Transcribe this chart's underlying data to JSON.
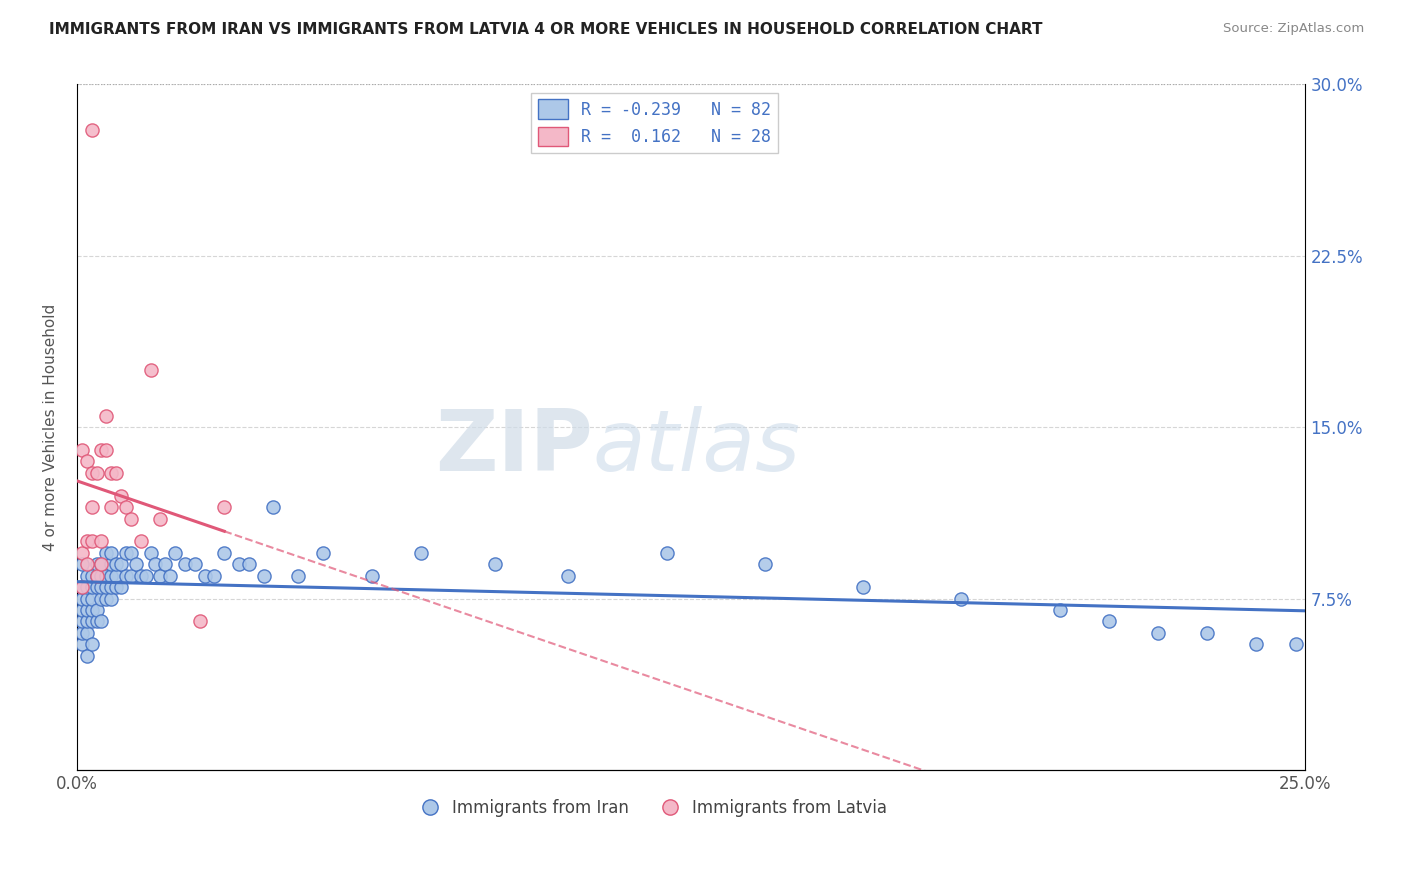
{
  "title": "IMMIGRANTS FROM IRAN VS IMMIGRANTS FROM LATVIA 4 OR MORE VEHICLES IN HOUSEHOLD CORRELATION CHART",
  "source": "Source: ZipAtlas.com",
  "ylabel": "4 or more Vehicles in Household",
  "xlim": [
    0.0,
    0.25
  ],
  "ylim": [
    0.0,
    0.3
  ],
  "yticks": [
    0.0,
    0.075,
    0.15,
    0.225,
    0.3
  ],
  "yticklabels": [
    "",
    "7.5%",
    "15.0%",
    "22.5%",
    "30.0%"
  ],
  "iran_color": "#adc8e8",
  "iran_color_line": "#4472c4",
  "latvia_color": "#f4b8c8",
  "latvia_color_line": "#e05878",
  "iran_R": -0.239,
  "iran_N": 82,
  "latvia_R": 0.162,
  "latvia_N": 28,
  "watermark_zip": "ZIP",
  "watermark_atlas": "atlas",
  "legend_iran_label": "Immigrants from Iran",
  "legend_latvia_label": "Immigrants from Latvia",
  "iran_x": [
    0.001,
    0.001,
    0.001,
    0.001,
    0.001,
    0.001,
    0.001,
    0.002,
    0.002,
    0.002,
    0.002,
    0.002,
    0.002,
    0.002,
    0.003,
    0.003,
    0.003,
    0.003,
    0.003,
    0.003,
    0.004,
    0.004,
    0.004,
    0.004,
    0.004,
    0.005,
    0.005,
    0.005,
    0.005,
    0.005,
    0.006,
    0.006,
    0.006,
    0.006,
    0.007,
    0.007,
    0.007,
    0.007,
    0.007,
    0.008,
    0.008,
    0.008,
    0.009,
    0.009,
    0.01,
    0.01,
    0.011,
    0.011,
    0.012,
    0.013,
    0.014,
    0.015,
    0.016,
    0.017,
    0.018,
    0.019,
    0.02,
    0.022,
    0.024,
    0.026,
    0.028,
    0.03,
    0.033,
    0.035,
    0.038,
    0.04,
    0.045,
    0.05,
    0.06,
    0.07,
    0.085,
    0.1,
    0.12,
    0.14,
    0.16,
    0.18,
    0.2,
    0.21,
    0.22,
    0.23,
    0.24,
    0.248
  ],
  "iran_y": [
    0.055,
    0.06,
    0.065,
    0.07,
    0.075,
    0.08,
    0.09,
    0.05,
    0.06,
    0.065,
    0.07,
    0.075,
    0.08,
    0.085,
    0.055,
    0.065,
    0.07,
    0.075,
    0.08,
    0.085,
    0.065,
    0.07,
    0.08,
    0.085,
    0.09,
    0.065,
    0.075,
    0.08,
    0.085,
    0.09,
    0.075,
    0.08,
    0.085,
    0.095,
    0.075,
    0.08,
    0.085,
    0.09,
    0.095,
    0.08,
    0.085,
    0.09,
    0.08,
    0.09,
    0.085,
    0.095,
    0.085,
    0.095,
    0.09,
    0.085,
    0.085,
    0.095,
    0.09,
    0.085,
    0.09,
    0.085,
    0.095,
    0.09,
    0.09,
    0.085,
    0.085,
    0.095,
    0.09,
    0.09,
    0.085,
    0.115,
    0.085,
    0.095,
    0.085,
    0.095,
    0.09,
    0.085,
    0.095,
    0.09,
    0.08,
    0.075,
    0.07,
    0.065,
    0.06,
    0.06,
    0.055,
    0.055
  ],
  "latvia_x": [
    0.001,
    0.001,
    0.001,
    0.002,
    0.002,
    0.002,
    0.003,
    0.003,
    0.003,
    0.003,
    0.004,
    0.004,
    0.005,
    0.005,
    0.005,
    0.006,
    0.006,
    0.007,
    0.007,
    0.008,
    0.009,
    0.01,
    0.011,
    0.013,
    0.015,
    0.017,
    0.025,
    0.03
  ],
  "latvia_y": [
    0.08,
    0.095,
    0.14,
    0.09,
    0.1,
    0.135,
    0.1,
    0.115,
    0.13,
    0.28,
    0.085,
    0.13,
    0.09,
    0.1,
    0.14,
    0.14,
    0.155,
    0.115,
    0.13,
    0.13,
    0.12,
    0.115,
    0.11,
    0.1,
    0.175,
    0.11,
    0.065,
    0.115
  ]
}
